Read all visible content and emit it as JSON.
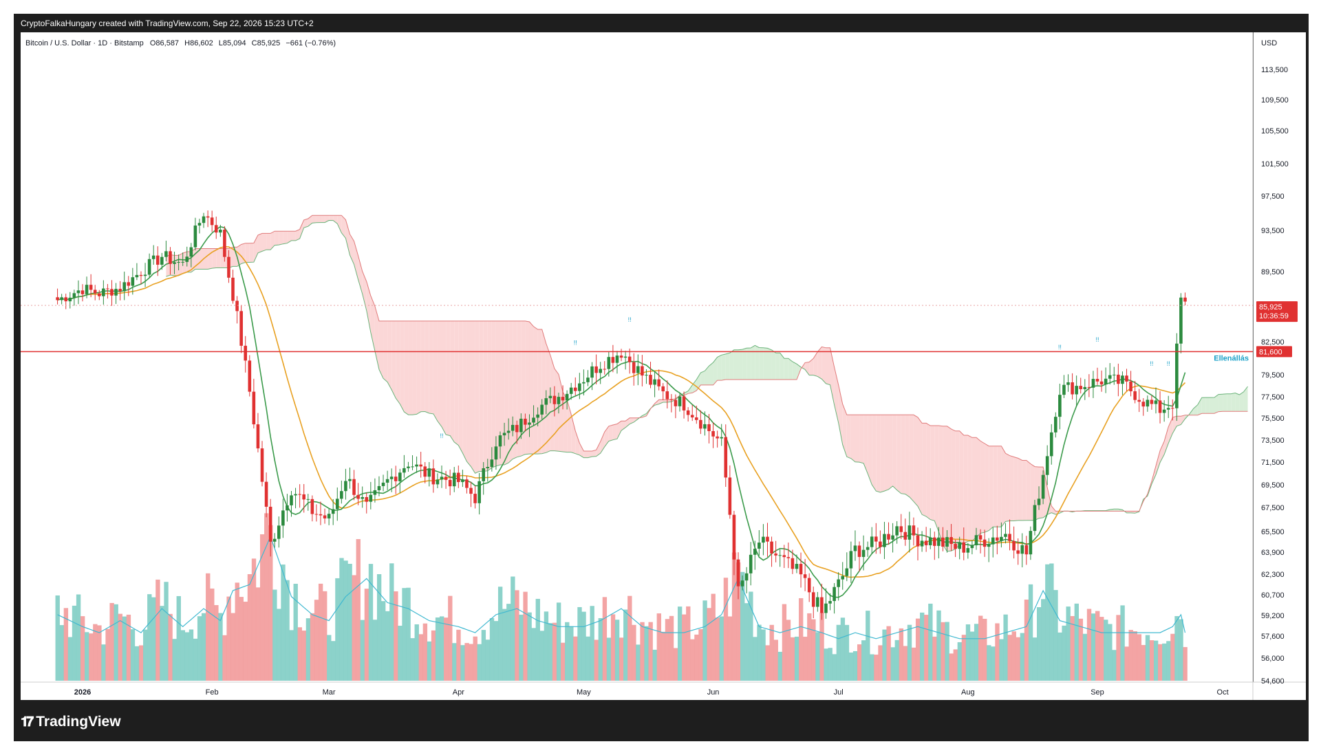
{
  "header": {
    "credit": "CryptoFalkaHungary created with TradingView.com, Sep 22, 2026 15:23 UTC+2"
  },
  "legend": {
    "symbol": "Bitcoin / U.S. Dollar · 1D · Bitstamp",
    "o_label": "O",
    "o": "86,587",
    "h_label": "H",
    "h": "86,602",
    "l_label": "L",
    "l": "85,094",
    "c_label": "C",
    "c": "85,925",
    "change": "−661 (−0.76%)"
  },
  "price_axis": {
    "currency": "USD",
    "last_price": "85,925",
    "countdown": "10:36:59",
    "level_value": "81,600",
    "level_label": "Ellenállás"
  },
  "colors": {
    "up": "#2b8a3e",
    "down": "#e03131",
    "ma_fast": "#3a9a4a",
    "ma_slow": "#e8a020",
    "cloud_bear": "#fbd7d7",
    "cloud_bull": "#d8eed8",
    "volume_up": "#7fcdc4",
    "volume_down": "#f29a9a",
    "volume_ma": "#3fb8d0",
    "level": "#e03131",
    "level_label": "#19a0c8"
  },
  "footer": {
    "brand": "TradingView",
    "brand_icon": "tradingview-logo-icon"
  },
  "chart_data": {
    "type": "candlestick",
    "title": "Bitcoin / U.S. Dollar · 1D · Bitstamp",
    "x_ticks": [
      "2026",
      "Feb",
      "Mar",
      "Apr",
      "May",
      "Jun",
      "Jul",
      "Aug",
      "Sep",
      "Oct"
    ],
    "y_ticks": [
      113500,
      109500,
      105500,
      101500,
      97500,
      93500,
      89500,
      85500,
      82500,
      79500,
      77500,
      75500,
      73500,
      71500,
      69500,
      67500,
      65500,
      63900,
      62300,
      60700,
      59200,
      57600,
      56000,
      54600
    ],
    "y_tick_labels": [
      "113,500",
      "109,500",
      "105,500",
      "101,500",
      "97,500",
      "93,500",
      "89,500",
      "85,500",
      "82,500",
      "79,500",
      "77,500",
      "75,500",
      "73,500",
      "71,500",
      "69,500",
      "67,500",
      "65,500",
      "63,900",
      "62,300",
      "60,700",
      "59,200",
      "57,600",
      "56,000",
      "54,600"
    ],
    "horizontal_level": {
      "value": 81600,
      "label": "Ellenállás"
    },
    "series": [
      {
        "name": "BTCUSD daily close",
        "x": [
          "2025-12-26",
          "2026-01-01",
          "2026-01-05",
          "2026-01-10",
          "2026-01-15",
          "2026-01-20",
          "2026-01-25",
          "2026-01-30",
          "2026-02-03",
          "2026-02-06",
          "2026-02-10",
          "2026-02-15",
          "2026-02-20",
          "2026-02-25",
          "2026-03-01",
          "2026-03-05",
          "2026-03-10",
          "2026-03-15",
          "2026-03-20",
          "2026-03-25",
          "2026-04-01",
          "2026-04-05",
          "2026-04-10",
          "2026-04-15",
          "2026-04-20",
          "2026-04-25",
          "2026-05-01",
          "2026-05-05",
          "2026-05-10",
          "2026-05-15",
          "2026-05-20",
          "2026-05-25",
          "2026-05-30",
          "2026-06-03",
          "2026-06-07",
          "2026-06-12",
          "2026-06-17",
          "2026-06-22",
          "2026-06-27",
          "2026-07-01",
          "2026-07-05",
          "2026-07-10",
          "2026-07-15",
          "2026-07-20",
          "2026-07-25",
          "2026-07-30",
          "2026-08-05",
          "2026-08-10",
          "2026-08-15",
          "2026-08-19",
          "2026-08-23",
          "2026-08-28",
          "2026-09-02",
          "2026-09-07",
          "2026-09-12",
          "2026-09-16",
          "2026-09-19",
          "2026-09-21",
          "2026-09-22"
        ],
        "values": [
          86500,
          87700,
          87200,
          87800,
          89500,
          91000,
          90200,
          95500,
          93200,
          87000,
          78000,
          64500,
          69200,
          67200,
          66500,
          70200,
          67500,
          69800,
          71500,
          70300,
          69800,
          68400,
          73400,
          74600,
          76500,
          77500,
          79200,
          80500,
          81600,
          79500,
          77800,
          76800,
          74800,
          73200,
          60800,
          64700,
          63400,
          62100,
          59300,
          61500,
          64100,
          64500,
          65900,
          65000,
          64700,
          64200,
          64900,
          65300,
          63800,
          70500,
          78200,
          78500,
          79000,
          78800,
          77100,
          76300,
          76900,
          86587,
          85925
        ],
        "ylim": [
          53500,
          116000
        ]
      },
      {
        "name": "Volume",
        "values": [
          11,
          9,
          8,
          10,
          8,
          12,
          9,
          12,
          10,
          15,
          16,
          24,
          14,
          11,
          10,
          14,
          17,
          13,
          12,
          10,
          9,
          8,
          11,
          12,
          10,
          9,
          9,
          10,
          12,
          9,
          8,
          8,
          9,
          11,
          17,
          9,
          8,
          9,
          8,
          7,
          8,
          7,
          8,
          9,
          8,
          7,
          7,
          8,
          9,
          15,
          10,
          9,
          8,
          8,
          8,
          8,
          9,
          11,
          8
        ]
      }
    ],
    "grid": false,
    "legend_position": "top-left"
  }
}
